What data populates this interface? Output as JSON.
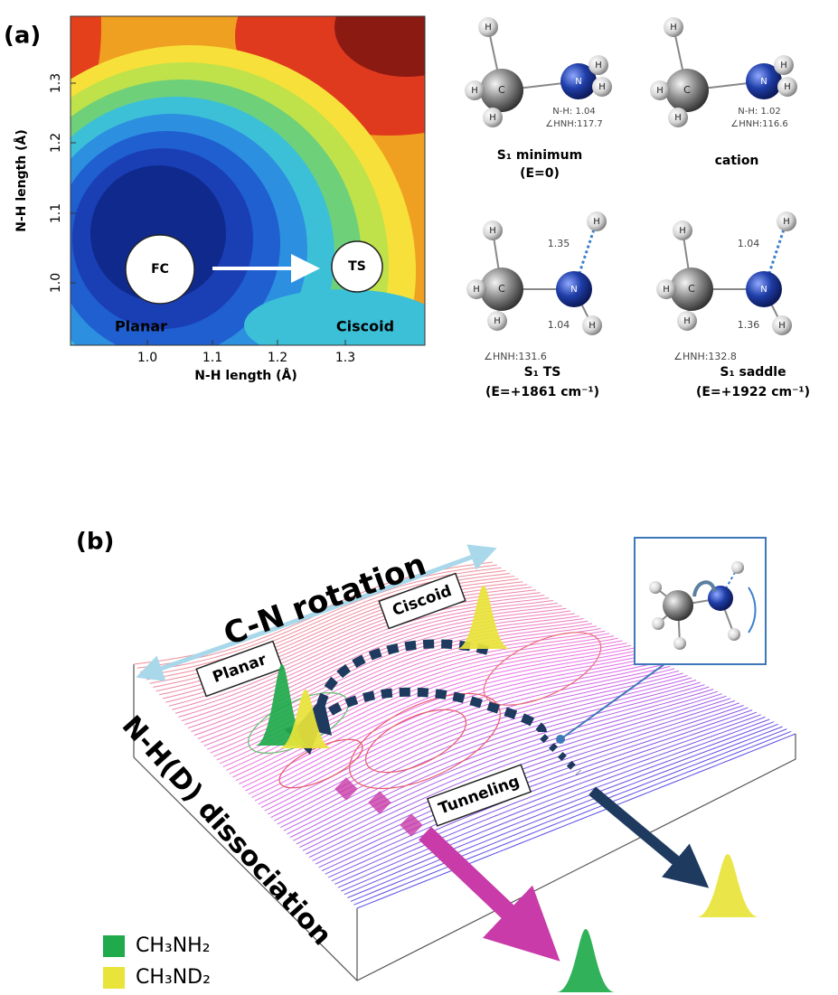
{
  "panel_a": {
    "label": "(a)",
    "x_axis_label": "N-H length (Å)",
    "y_axis_label": "N-H length (Å)",
    "x_ticks": [
      "1.0",
      "1.1",
      "1.2",
      "1.3"
    ],
    "y_ticks": [
      "1.0",
      "1.1",
      "1.2",
      "1.3"
    ],
    "markers": [
      "FC",
      "TS"
    ],
    "region_labels": [
      "Planar",
      "Ciscoid"
    ]
  },
  "atom_labels": [
    "H",
    "C",
    "N"
  ],
  "structures": [
    {
      "name": "S₁ minimum",
      "energy": "(E=0)",
      "bond": "N-H: 1.04",
      "angle": "∠HNH:117.7"
    },
    {
      "name": "cation",
      "bond": "N-H: 1.02",
      "angle": "∠HNH:116.6"
    },
    {
      "name": "S₁ TS",
      "energy": "(E=+1861 cm⁻¹)",
      "bonds": [
        "1.35",
        "1.04"
      ],
      "angle": "∠HNH:131.6"
    },
    {
      "name": "S₁ saddle",
      "energy": "(E=+1922 cm⁻¹)",
      "bonds": [
        "1.04",
        "1.36"
      ],
      "angle": "∠HNH:132.8"
    }
  ],
  "panel_b": {
    "label": "(b)",
    "rotation_label": "C-N rotation",
    "dissociation_label": "N-H(D) dissociation",
    "region_labels": [
      "Planar",
      "Ciscoid",
      "Tunneling"
    ],
    "legend": [
      {
        "name": "CH₃NH₂",
        "color": "#1faa4b"
      },
      {
        "name": "CH₃ND₂",
        "color": "#e8e43a"
      }
    ]
  }
}
